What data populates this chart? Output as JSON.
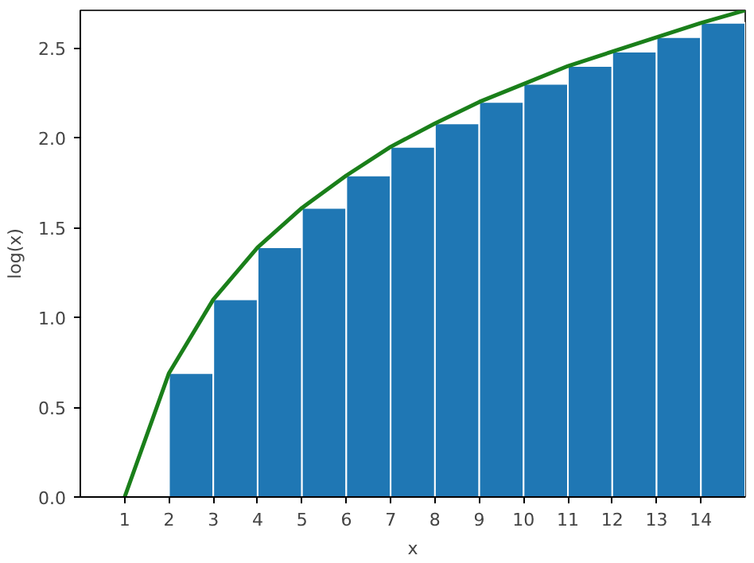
{
  "chart_data": {
    "type": "histogram",
    "xlabel": "x",
    "ylabel": "log(x)",
    "bins": [
      2,
      3,
      4,
      5,
      6,
      7,
      8,
      9,
      10,
      11,
      12,
      13,
      14,
      15
    ],
    "values": [
      0.69,
      1.1,
      1.39,
      1.61,
      1.79,
      1.95,
      2.08,
      2.2,
      2.3,
      2.4,
      2.48,
      2.56,
      2.64
    ],
    "color": "#1f77b4",
    "series": [
      {
        "type": "line",
        "color": "#1a7f1a",
        "x": [
          1,
          2,
          3,
          4,
          5,
          6,
          7,
          8,
          9,
          10,
          11,
          12,
          13,
          14,
          15
        ],
        "values": [
          0,
          0.69,
          1.1,
          1.39,
          1.61,
          1.79,
          1.95,
          2.08,
          2.2,
          2.3,
          2.4,
          2.48,
          2.56,
          2.64,
          2.71
        ]
      }
    ],
    "xlim": [
      0,
      15
    ],
    "ylim": [
      0,
      2.71
    ],
    "xticks": [
      1,
      2,
      3,
      4,
      5,
      6,
      7,
      8,
      9,
      10,
      11,
      12,
      13,
      14
    ],
    "yticks": [
      {
        "value": 0,
        "label": "0.0"
      },
      {
        "value": 0.5,
        "label": "0.5"
      },
      {
        "value": 1,
        "label": "1.0"
      },
      {
        "value": 1.5,
        "label": "1.5"
      },
      {
        "value": 2,
        "label": "2.0"
      },
      {
        "value": 2.5,
        "label": "2.5"
      }
    ],
    "grid": false
  }
}
